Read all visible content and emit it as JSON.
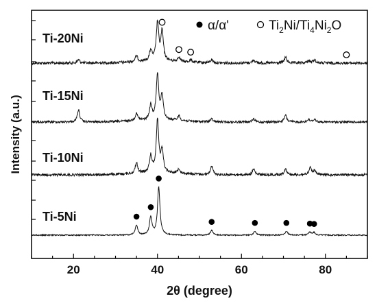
{
  "chart_data": {
    "type": "line",
    "xlabel": "2θ (degree)",
    "ylabel": "Intensity (a.u.)",
    "xlim": [
      10,
      90
    ],
    "x_ticks": [
      20,
      40,
      60,
      80
    ],
    "x_tick_labels": [
      "20",
      "40",
      "60",
      "80"
    ],
    "legend": {
      "position": "top-right",
      "entries": [
        {
          "marker": "filled-circle",
          "label": "α/α'"
        },
        {
          "marker": "open-circle",
          "label": "Ti2Ni/Ti4Ni2O"
        }
      ]
    },
    "series": [
      {
        "name": "Ti-20Ni",
        "baseline": 0.0,
        "peaks": [
          [
            21.2,
            0.07
          ],
          [
            35.0,
            0.12
          ],
          [
            38.4,
            0.22
          ],
          [
            40.0,
            0.8
          ],
          [
            41.1,
            0.6
          ],
          [
            45.1,
            0.1
          ],
          [
            47.9,
            0.05
          ],
          [
            52.9,
            0.07
          ],
          [
            62.9,
            0.07
          ],
          [
            70.5,
            0.12
          ],
          [
            76.0,
            0.05
          ],
          [
            77.4,
            0.07
          ]
        ]
      },
      {
        "name": "Ti-15Ni",
        "baseline": 0.0,
        "peaks": [
          [
            21.2,
            0.25
          ],
          [
            35.0,
            0.15
          ],
          [
            38.4,
            0.3
          ],
          [
            40.0,
            0.95
          ],
          [
            41.1,
            0.5
          ],
          [
            45.1,
            0.1
          ],
          [
            52.9,
            0.06
          ],
          [
            62.9,
            0.06
          ],
          [
            70.5,
            0.14
          ],
          [
            76.0,
            0.05
          ],
          [
            77.4,
            0.06
          ]
        ]
      },
      {
        "name": "Ti-10Ni",
        "baseline": 0.0,
        "peaks": [
          [
            35.0,
            0.22
          ],
          [
            38.4,
            0.35
          ],
          [
            40.0,
            1.1
          ],
          [
            41.1,
            0.45
          ],
          [
            45.1,
            0.1
          ],
          [
            52.9,
            0.18
          ],
          [
            62.9,
            0.12
          ],
          [
            70.5,
            0.13
          ],
          [
            76.4,
            0.14
          ],
          [
            77.4,
            0.08
          ]
        ]
      },
      {
        "name": "Ti-5Ni",
        "baseline": 0.0,
        "peaks": [
          [
            35.0,
            0.3
          ],
          [
            38.4,
            0.55
          ],
          [
            40.3,
            1.45
          ],
          [
            52.9,
            0.15
          ],
          [
            63.2,
            0.12
          ],
          [
            70.7,
            0.12
          ],
          [
            76.3,
            0.09
          ],
          [
            77.3,
            0.08
          ]
        ]
      }
    ],
    "markers": [
      {
        "series": "Ti-5Ni",
        "kind": "alpha",
        "x": [
          35.0,
          38.4,
          40.3,
          52.9,
          63.2,
          70.7,
          76.3,
          77.3
        ]
      },
      {
        "series": "Ti-20Ni",
        "kind": "Ti2Ni",
        "x": [
          41.1,
          45.1,
          47.9,
          85.0
        ]
      }
    ]
  }
}
